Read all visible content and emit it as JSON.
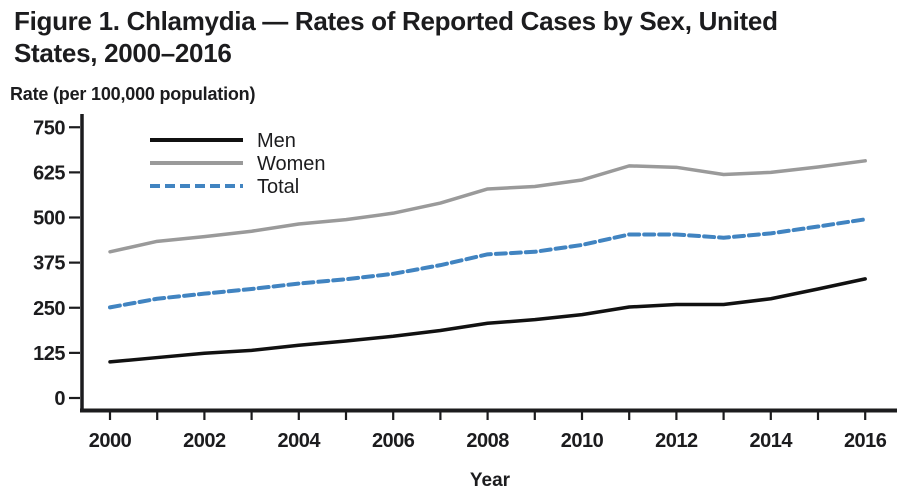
{
  "figure": {
    "title_line1": "Figure 1. Chlamydia — Rates of Reported Cases by Sex, United",
    "title_line2": "States, 2000–2016",
    "y_axis_title": "Rate (per 100,000 population)",
    "x_axis_title": "Year"
  },
  "colors": {
    "ink": "#1c1c1e",
    "men_line": "#111111",
    "women_line": "#9a9a9a",
    "total_line": "#4184c1"
  },
  "chart_data": {
    "type": "line",
    "title": "Figure 1. Chlamydia — Rates of Reported Cases by Sex, United States, 2000–2016",
    "xlabel": "Year",
    "ylabel": "Rate (per 100,000 population)",
    "x": [
      2000,
      2001,
      2002,
      2003,
      2004,
      2005,
      2006,
      2007,
      2008,
      2009,
      2010,
      2011,
      2012,
      2013,
      2014,
      2015,
      2016
    ],
    "x_labeled_ticks": [
      2000,
      2002,
      2004,
      2006,
      2008,
      2010,
      2012,
      2014,
      2016
    ],
    "y_ticks": [
      0,
      125,
      250,
      375,
      500,
      625,
      750
    ],
    "ylim": [
      0,
      750
    ],
    "grid": false,
    "legend_position": "upper-left-inside",
    "series": [
      {
        "name": "Men",
        "color": "#111111",
        "line_style": "solid",
        "values": [
          100,
          112,
          124,
          132,
          146,
          158,
          171,
          187,
          207,
          217,
          231,
          252,
          259,
          259,
          275,
          302,
          330
        ]
      },
      {
        "name": "Women",
        "color": "#9a9a9a",
        "line_style": "solid",
        "values": [
          405,
          434,
          447,
          462,
          482,
          494,
          512,
          540,
          579,
          586,
          604,
          643,
          639,
          619,
          625,
          640,
          657
        ]
      },
      {
        "name": "Total",
        "color": "#4184c1",
        "line_style": "dashed",
        "values": [
          251,
          275,
          289,
          302,
          317,
          329,
          344,
          368,
          398,
          405,
          424,
          453,
          453,
          444,
          456,
          475,
          495
        ]
      }
    ]
  }
}
